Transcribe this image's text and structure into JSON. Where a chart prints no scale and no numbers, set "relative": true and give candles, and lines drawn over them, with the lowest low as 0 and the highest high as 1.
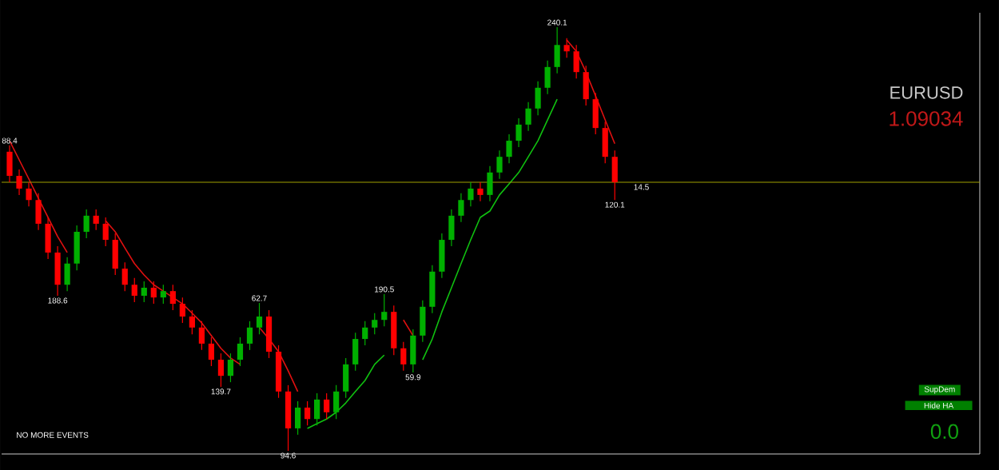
{
  "chart_data": {
    "type": "candlestick",
    "relative": true,
    "title": "EURUSD",
    "subtitle": "1.09034",
    "categories": [
      null,
      null,
      null,
      null,
      null,
      null,
      null,
      null,
      null,
      null,
      null,
      null,
      null,
      null,
      null,
      null,
      null,
      null,
      null,
      null,
      null,
      null,
      null,
      null,
      null,
      null,
      null,
      null,
      null,
      null,
      null,
      null,
      null,
      null,
      null,
      null,
      null,
      null,
      null,
      null,
      null,
      null,
      null,
      null,
      null,
      null,
      null,
      null,
      null,
      null,
      null,
      null,
      null,
      null,
      null,
      null,
      null,
      null,
      null,
      null,
      null,
      null,
      null,
      null
    ],
    "ohlc": [
      [
        0.706,
        0.721,
        0.634,
        0.649
      ],
      [
        0.649,
        0.664,
        0.604,
        0.619
      ],
      [
        0.619,
        0.634,
        0.577,
        0.592
      ],
      [
        0.592,
        0.608,
        0.521,
        0.536
      ],
      [
        0.536,
        0.551,
        0.453,
        0.468
      ],
      [
        0.468,
        0.483,
        0.366,
        0.392
      ],
      [
        0.392,
        0.457,
        0.377,
        0.442
      ],
      [
        0.442,
        0.532,
        0.426,
        0.517
      ],
      [
        0.517,
        0.57,
        0.502,
        0.555
      ],
      [
        0.555,
        0.57,
        0.521,
        0.536
      ],
      [
        0.536,
        0.551,
        0.483,
        0.498
      ],
      [
        0.498,
        0.513,
        0.415,
        0.43
      ],
      [
        0.43,
        0.445,
        0.377,
        0.392
      ],
      [
        0.392,
        0.408,
        0.351,
        0.366
      ],
      [
        0.366,
        0.4,
        0.351,
        0.385
      ],
      [
        0.385,
        0.4,
        0.347,
        0.362
      ],
      [
        0.362,
        0.392,
        0.347,
        0.377
      ],
      [
        0.377,
        0.392,
        0.332,
        0.347
      ],
      [
        0.347,
        0.362,
        0.302,
        0.317
      ],
      [
        0.317,
        0.332,
        0.275,
        0.291
      ],
      [
        0.291,
        0.306,
        0.238,
        0.253
      ],
      [
        0.253,
        0.268,
        0.2,
        0.215
      ],
      [
        0.215,
        0.23,
        0.151,
        0.177
      ],
      [
        0.177,
        0.23,
        0.162,
        0.215
      ],
      [
        0.215,
        0.268,
        0.2,
        0.253
      ],
      [
        0.253,
        0.306,
        0.238,
        0.291
      ],
      [
        0.291,
        0.349,
        0.275,
        0.317
      ],
      [
        0.317,
        0.332,
        0.219,
        0.234
      ],
      [
        0.234,
        0.249,
        0.125,
        0.14
      ],
      [
        0.14,
        0.155,
        0,
        0.053
      ],
      [
        0.053,
        0.117,
        0.038,
        0.102
      ],
      [
        0.102,
        0.117,
        0.06,
        0.075
      ],
      [
        0.075,
        0.136,
        0.06,
        0.121
      ],
      [
        0.121,
        0.136,
        0.075,
        0.091
      ],
      [
        0.091,
        0.155,
        0.075,
        0.14
      ],
      [
        0.14,
        0.219,
        0.125,
        0.204
      ],
      [
        0.204,
        0.279,
        0.189,
        0.264
      ],
      [
        0.264,
        0.306,
        0.249,
        0.291
      ],
      [
        0.291,
        0.325,
        0.275,
        0.309
      ],
      [
        0.309,
        0.37,
        0.294,
        0.328
      ],
      [
        0.328,
        0.343,
        0.226,
        0.242
      ],
      [
        0.242,
        0.257,
        0.189,
        0.204
      ],
      [
        0.204,
        0.287,
        0.185,
        0.272
      ],
      [
        0.272,
        0.355,
        0.257,
        0.34
      ],
      [
        0.34,
        0.438,
        0.325,
        0.423
      ],
      [
        0.423,
        0.513,
        0.408,
        0.498
      ],
      [
        0.498,
        0.57,
        0.483,
        0.555
      ],
      [
        0.555,
        0.608,
        0.54,
        0.592
      ],
      [
        0.592,
        0.634,
        0.577,
        0.619
      ],
      [
        0.619,
        0.634,
        0.589,
        0.604
      ],
      [
        0.604,
        0.672,
        0.589,
        0.657
      ],
      [
        0.657,
        0.709,
        0.642,
        0.694
      ],
      [
        0.694,
        0.747,
        0.679,
        0.732
      ],
      [
        0.732,
        0.785,
        0.717,
        0.77
      ],
      [
        0.77,
        0.823,
        0.755,
        0.808
      ],
      [
        0.808,
        0.872,
        0.792,
        0.857
      ],
      [
        0.857,
        0.921,
        0.842,
        0.906
      ],
      [
        0.906,
        1,
        0.891,
        0.958
      ],
      [
        0.958,
        0.974,
        0.928,
        0.943
      ],
      [
        0.943,
        0.958,
        0.879,
        0.894
      ],
      [
        0.894,
        0.909,
        0.815,
        0.83
      ],
      [
        0.83,
        0.845,
        0.747,
        0.762
      ],
      [
        0.762,
        0.777,
        0.679,
        0.694
      ],
      [
        0.694,
        0.709,
        0.592,
        0.634
      ]
    ],
    "colors": [
      "#ff0000",
      "#ff0000",
      "#ff0000",
      "#ff0000",
      "#ff0000",
      "#ff0000",
      "#00b000",
      "#00b000",
      "#00b000",
      "#ff0000",
      "#ff0000",
      "#ff0000",
      "#ff0000",
      "#ff0000",
      "#00b000",
      "#ff0000",
      "#00b000",
      "#ff0000",
      "#ff0000",
      "#ff0000",
      "#ff0000",
      "#ff0000",
      "#ff0000",
      "#00b000",
      "#00b000",
      "#00b000",
      "#00b000",
      "#ff0000",
      "#ff0000",
      "#ff0000",
      "#00b000",
      "#ff0000",
      "#00b000",
      "#ff0000",
      "#00b000",
      "#00b000",
      "#00b000",
      "#00b000",
      "#00b000",
      "#00b000",
      "#ff0000",
      "#ff0000",
      "#00b000",
      "#00b000",
      "#00b000",
      "#00b000",
      "#00b000",
      "#00b000",
      "#00b000",
      "#ff0000",
      "#00b000",
      "#00b000",
      "#00b000",
      "#00b000",
      "#00b000",
      "#00b000",
      "#00b000",
      "#00b000",
      "#ff0000",
      "#ff0000",
      "#ff0000",
      "#ff0000",
      "#ff0000",
      "#ff0000"
    ],
    "series": [
      {
        "type": "line",
        "color": "#e01010",
        "values": [
          0.732,
          0.687,
          0.642,
          0.596,
          0.551,
          0.506,
          0.468,
          null,
          null,
          null,
          0.543,
          0.517,
          0.479,
          0.442,
          0.415,
          0.392,
          0.377,
          0.362,
          0.347,
          0.325,
          0.302,
          0.272,
          0.242,
          0.219,
          0.204,
          null,
          0.291,
          0.264,
          0.234,
          0.189,
          0.14,
          null,
          null,
          null,
          null,
          null,
          null,
          null,
          null,
          null,
          null,
          0.309,
          0.272,
          null,
          null,
          null,
          null,
          null,
          null,
          null,
          null,
          null,
          null,
          null,
          null,
          null,
          null,
          null,
          0.97,
          0.943,
          0.894,
          0.838,
          0.781,
          0.725
        ]
      },
      {
        "type": "line",
        "color": "#10c010",
        "values": [
          null,
          null,
          null,
          null,
          null,
          null,
          null,
          null,
          null,
          null,
          null,
          null,
          null,
          null,
          null,
          null,
          null,
          null,
          null,
          null,
          null,
          null,
          null,
          null,
          null,
          null,
          null,
          null,
          null,
          null,
          null,
          0.053,
          0.064,
          0.075,
          0.091,
          0.113,
          0.14,
          0.166,
          0.204,
          0.226,
          null,
          null,
          null,
          0.215,
          0.264,
          0.328,
          0.385,
          0.442,
          0.498,
          0.551,
          0.566,
          0.604,
          0.63,
          0.657,
          0.694,
          0.732,
          0.781,
          0.83,
          null,
          null,
          null,
          null,
          null,
          null
        ]
      }
    ],
    "ref_lines": [
      {
        "axis": "y",
        "value": 0.634,
        "color": "#a0a000"
      }
    ],
    "annotations": [
      {
        "text": "88.4",
        "y": 0.721
      },
      {
        "text": "188.6",
        "y": 0.366
      },
      {
        "text": "139.7",
        "y": 0.151
      },
      {
        "text": "62.7",
        "y": 0.349
      },
      {
        "text": "94.6",
        "y": 0
      },
      {
        "text": "190.5",
        "y": 0.37
      },
      {
        "text": "59.9",
        "y": 0.185
      },
      {
        "text": "240.1",
        "y": 1
      },
      {
        "text": "120.1",
        "y": 0.592
      },
      "14.5",
      "NO MORE EVENTS",
      "SupDem",
      "Hide HA",
      "0.0"
    ]
  }
}
